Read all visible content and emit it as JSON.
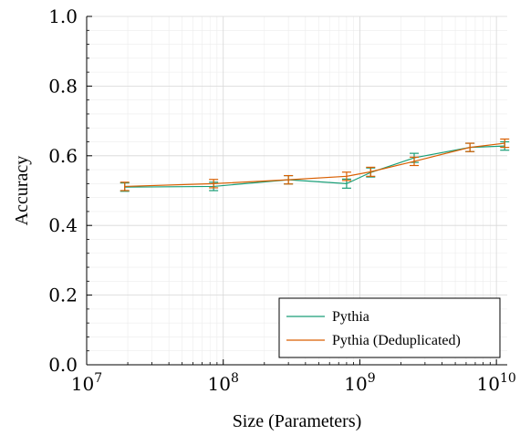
{
  "chart_data": {
    "type": "line",
    "xlabel": "Size (Parameters)",
    "ylabel": "Accuracy",
    "xscale": "log",
    "xlim": [
      10000000,
      12000000000
    ],
    "ylim": [
      0,
      1
    ],
    "x_ticks": [
      {
        "value": 10000000,
        "base": "10",
        "exp": "7"
      },
      {
        "value": 100000000,
        "base": "10",
        "exp": "8"
      },
      {
        "value": 1000000000,
        "base": "10",
        "exp": "9"
      },
      {
        "value": 10000000000,
        "base": "10",
        "exp": "10"
      }
    ],
    "y_ticks": [
      "0.0",
      "0.2",
      "0.4",
      "0.6",
      "0.8",
      "1.0"
    ],
    "grid": true,
    "legend_position": "bottom-right",
    "x": [
      19000000,
      85000000,
      300000000,
      800000000,
      1200000000,
      2500000000,
      6400000000,
      11500000000
    ],
    "series": [
      {
        "name": "Pythia",
        "color": "#1a9e77",
        "values": [
          0.51,
          0.512,
          0.531,
          0.52,
          0.552,
          0.594,
          0.624,
          0.628
        ],
        "errors": [
          0.012,
          0.012,
          0.012,
          0.013,
          0.013,
          0.013,
          0.012,
          0.012
        ]
      },
      {
        "name": "Pythia (Deduplicated)",
        "color": "#d95f02",
        "values": [
          0.512,
          0.52,
          0.531,
          0.541,
          0.554,
          0.584,
          0.624,
          0.636
        ],
        "errors": [
          0.012,
          0.012,
          0.012,
          0.012,
          0.013,
          0.012,
          0.012,
          0.012
        ]
      }
    ]
  }
}
